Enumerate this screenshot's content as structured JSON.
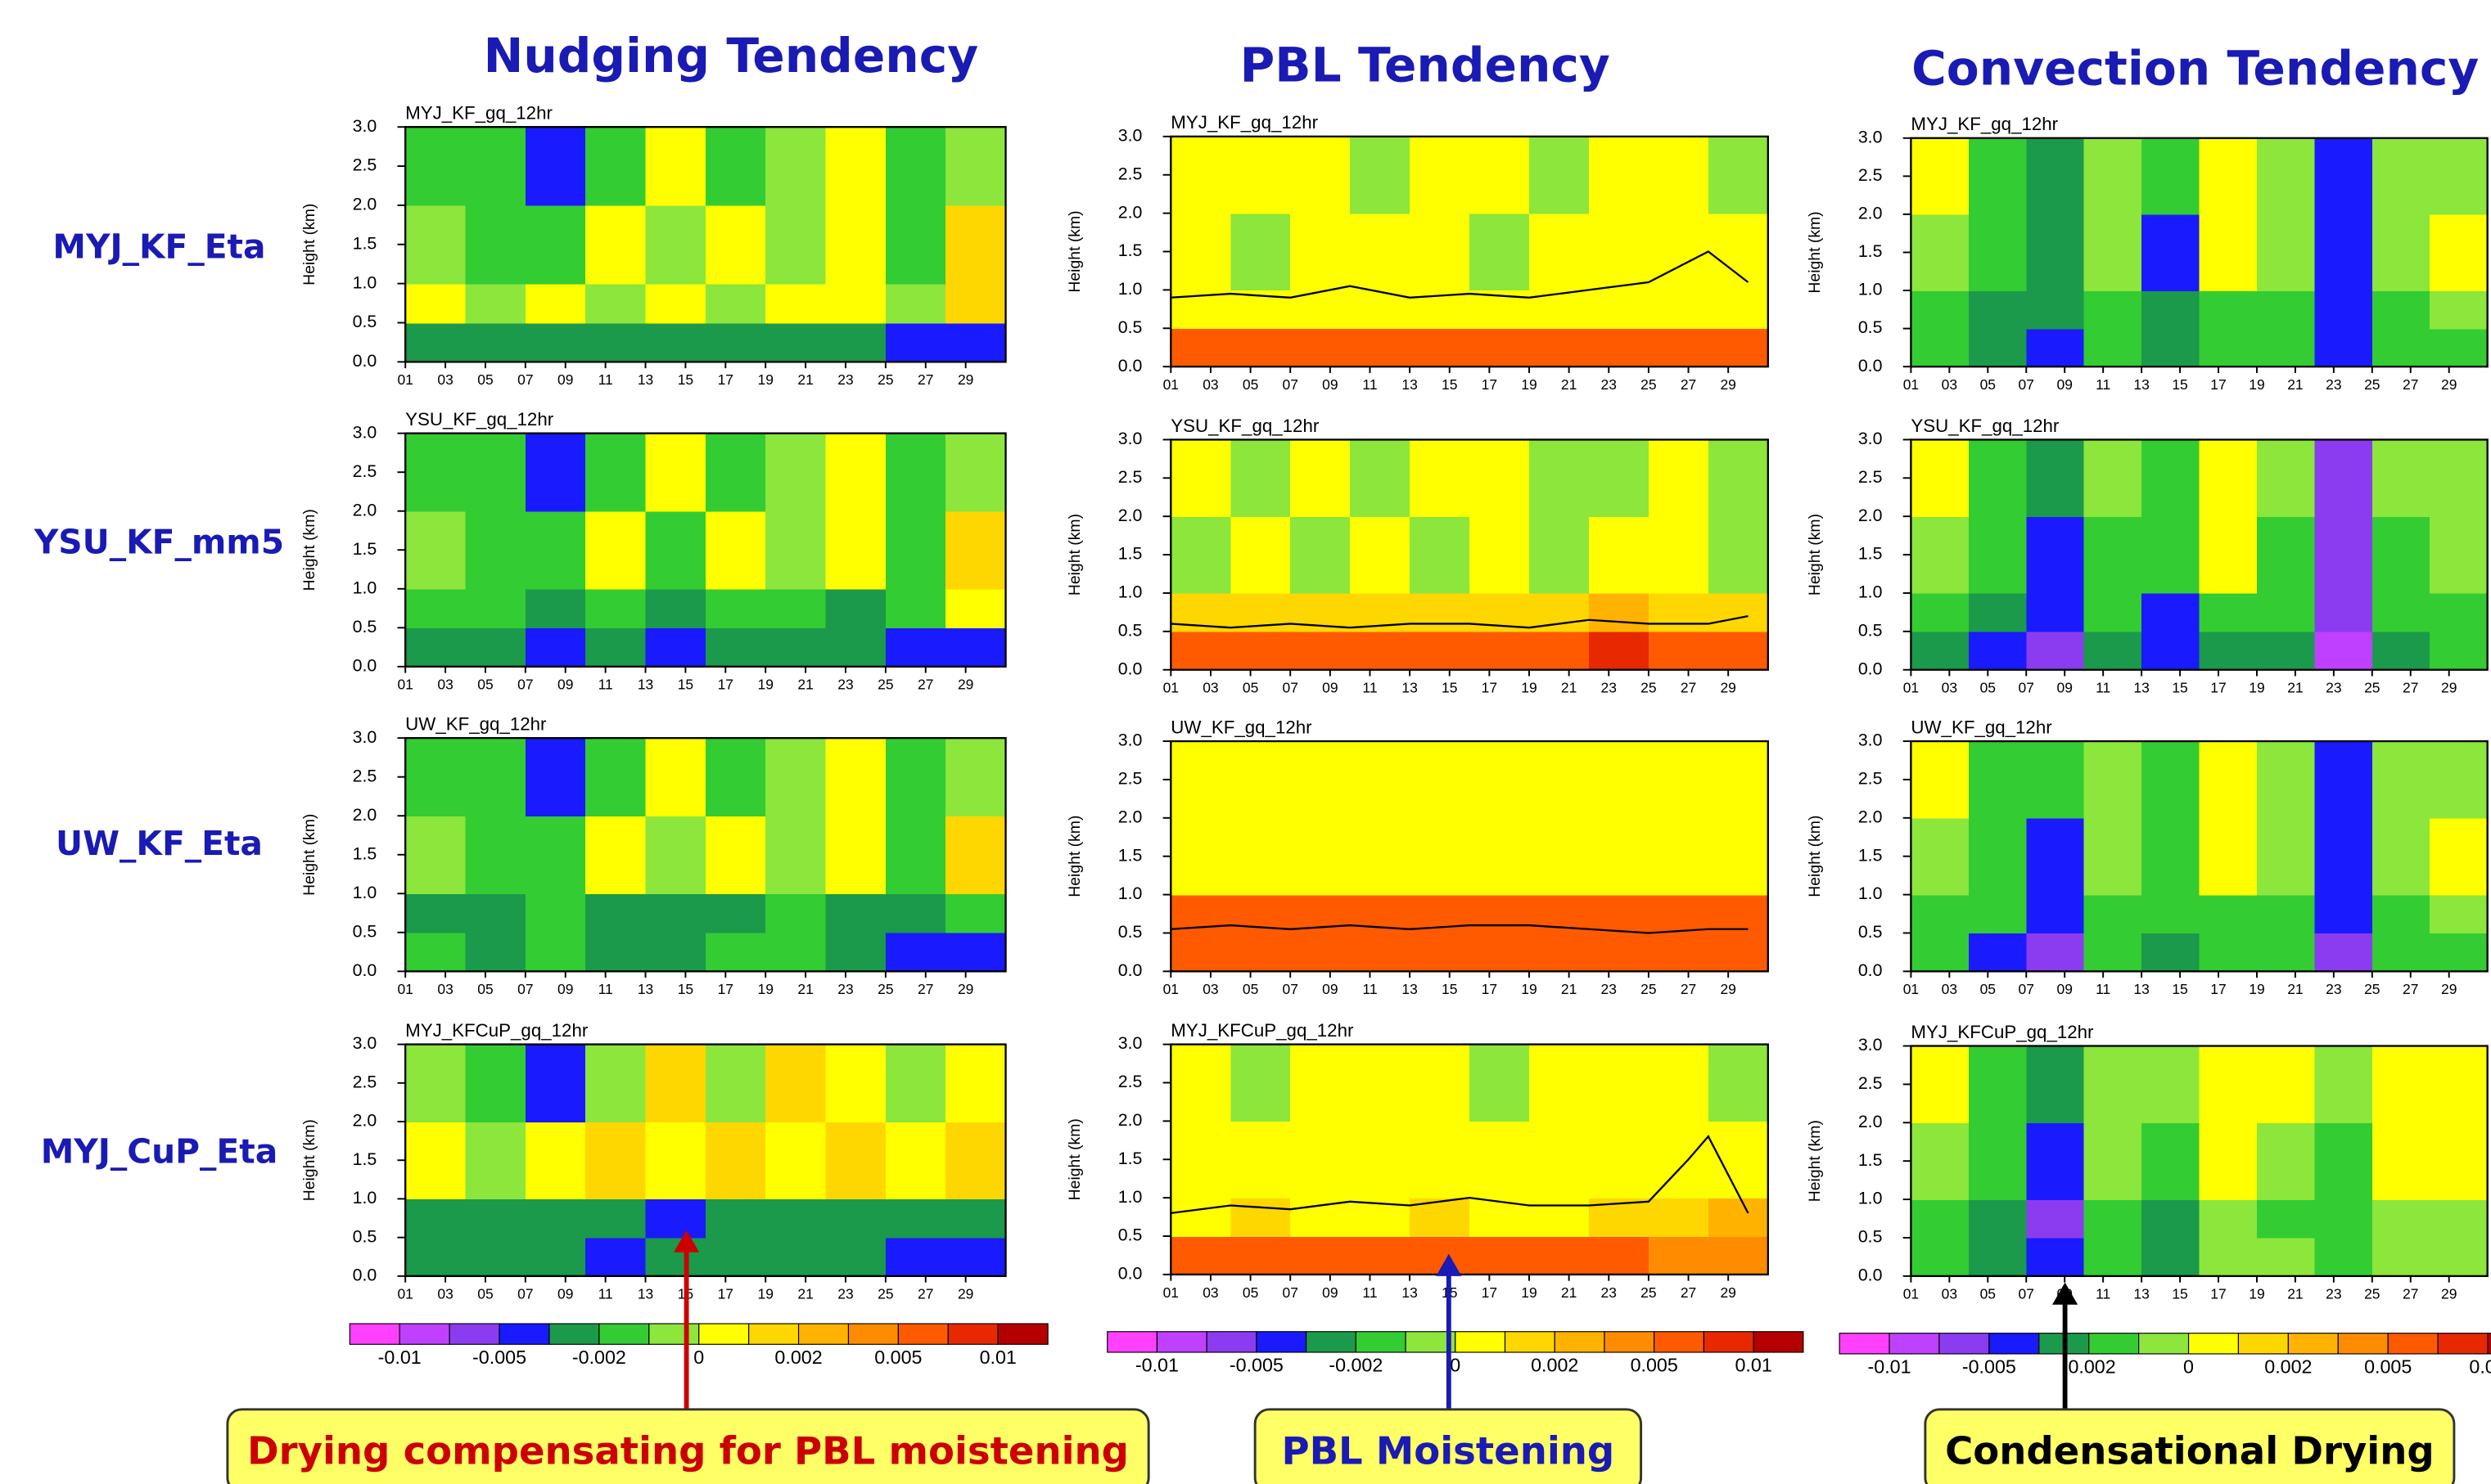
{
  "columns": [
    "Nudging Tendency",
    "PBL Tendency",
    "Convection Tendency"
  ],
  "rows": [
    "MYJ_KF_Eta",
    "YSU_KF_mm5",
    "UW_KF_Eta",
    "MYJ_CuP_Eta"
  ],
  "heading_color": "#1a1ab4",
  "axes": {
    "ylabel": "Height (km)",
    "xlim": [
      1,
      31
    ],
    "ylim": [
      0,
      3
    ],
    "x_edges": [
      1,
      4,
      7,
      10,
      13,
      16,
      19,
      22,
      25,
      28,
      31
    ],
    "y_edges": [
      0,
      0.5,
      1,
      2,
      3
    ],
    "xticks": [
      {
        "value": 1,
        "label": "01"
      },
      {
        "value": 3,
        "label": "03"
      },
      {
        "value": 5,
        "label": "05"
      },
      {
        "value": 7,
        "label": "07"
      },
      {
        "value": 9,
        "label": "09"
      },
      11,
      13,
      15,
      17,
      19,
      21,
      23,
      25,
      27,
      29
    ],
    "yticks": [
      {
        "value": 0,
        "label": "0.0"
      },
      0.5,
      {
        "value": 1,
        "label": "1.0"
      },
      1.5,
      {
        "value": 2,
        "label": "2.0"
      },
      2.5,
      {
        "value": 3,
        "label": "3.0"
      }
    ]
  },
  "colorbar": {
    "colors": [
      "#ff40ff",
      "#c040ff",
      "#8c3cf0",
      "#1a1aff",
      "#1a9a4a",
      "#33cc33",
      "#8ce63c",
      "#ffff00",
      "#ffd700",
      "#ffb300",
      "#ff8c00",
      "#ff5a00",
      "#e82800",
      "#b40000"
    ],
    "ticks": [
      -0.01,
      -0.005,
      -0.002,
      0,
      0.002,
      0.005,
      0.01
    ]
  },
  "chart_data": [
    {
      "type": "heatmap",
      "title": "MYJ_KF_gq_12hr",
      "values": [
        [
          -0.0025,
          -0.0025,
          -0.0025,
          -0.003,
          -0.0025,
          -0.0025,
          -0.0025,
          -0.003,
          -0.004,
          -0.0045
        ],
        [
          0.0005,
          -0.0005,
          0.0005,
          -0.0005,
          0.0005,
          -0.0005,
          0.0005,
          0.0005,
          -0.0005,
          0.0015
        ],
        [
          -0.0005,
          -0.0015,
          -0.0015,
          0.0005,
          -0.0005,
          0.0005,
          -0.0005,
          0.0005,
          -0.0015,
          0.0015
        ],
        [
          -0.0015,
          -0.0015,
          -0.004,
          -0.0015,
          0.0005,
          -0.0015,
          -0.0005,
          0.0005,
          -0.0015,
          -0.0005
        ]
      ]
    },
    {
      "type": "heatmap",
      "title": "MYJ_KF_gq_12hr",
      "values": [
        [
          0.006,
          0.0065,
          0.006,
          0.0055,
          0.006,
          0.006,
          0.0065,
          0.007,
          0.0065,
          0.006
        ],
        [
          0.0005,
          0.0005,
          0.0005,
          0.0005,
          0.0005,
          0.0005,
          0.0005,
          0.0005,
          0.0005,
          0.0005
        ],
        [
          0.0005,
          -0.0005,
          0.0005,
          0.0005,
          0.0005,
          -0.0005,
          0.0005,
          0.0005,
          0.0005,
          0.0005
        ],
        [
          0.0005,
          0.0005,
          0.0005,
          -0.0005,
          0.0005,
          0.0005,
          -0.0005,
          0.0005,
          0.0005,
          -0.0005
        ]
      ],
      "line": {
        "color": "#000000",
        "x": [
          1,
          4,
          7,
          10,
          13,
          16,
          19,
          22,
          25,
          28,
          30
        ],
        "values": [
          0.9,
          0.95,
          0.9,
          1.05,
          0.9,
          0.95,
          0.9,
          1.0,
          1.1,
          1.5,
          1.1
        ]
      }
    },
    {
      "type": "heatmap",
      "title": "MYJ_KF_gq_12hr",
      "values": [
        [
          -0.0015,
          -0.003,
          -0.004,
          -0.0015,
          -0.003,
          -0.0015,
          -0.0015,
          -0.005,
          -0.0015,
          -0.0015
        ],
        [
          -0.0015,
          -0.0025,
          -0.003,
          -0.0015,
          -0.003,
          -0.0015,
          -0.0015,
          -0.005,
          -0.0015,
          -0.0005
        ],
        [
          -0.0005,
          -0.0015,
          -0.0025,
          -0.0005,
          -0.004,
          0.0005,
          -0.0005,
          -0.005,
          -0.0005,
          0.0005
        ],
        [
          0.0005,
          -0.0015,
          -0.0025,
          -0.0005,
          -0.0015,
          0.0005,
          -0.0005,
          -0.005,
          -0.0005,
          -0.0005
        ]
      ]
    },
    {
      "type": "heatmap",
      "title": "YSU_KF_gq_12hr",
      "values": [
        [
          -0.0025,
          -0.003,
          -0.004,
          -0.003,
          -0.004,
          -0.003,
          -0.0025,
          -0.003,
          -0.004,
          -0.0045
        ],
        [
          -0.0015,
          -0.0015,
          -0.003,
          -0.0015,
          -0.0025,
          -0.0015,
          -0.0015,
          -0.0025,
          -0.0015,
          0.0005
        ],
        [
          -0.0005,
          -0.0015,
          -0.0015,
          0.0005,
          -0.0015,
          0.0005,
          -0.0005,
          0.0005,
          -0.0015,
          0.0015
        ],
        [
          -0.0015,
          -0.0015,
          -0.004,
          -0.0015,
          0.0005,
          -0.0015,
          -0.0005,
          0.0005,
          -0.0015,
          -0.0005
        ]
      ]
    },
    {
      "type": "heatmap",
      "title": "YSU_KF_gq_12hr",
      "values": [
        [
          0.0065,
          0.007,
          0.0065,
          0.006,
          0.007,
          0.0065,
          0.0065,
          0.008,
          0.007,
          0.0065
        ],
        [
          0.0015,
          0.0015,
          0.0015,
          0.0015,
          0.0015,
          0.0015,
          0.0015,
          0.0025,
          0.0015,
          0.0015
        ],
        [
          -0.0005,
          0.0005,
          -0.0005,
          0.0005,
          -0.0005,
          0.0005,
          -0.0005,
          0.0005,
          0.0005,
          -0.0005
        ],
        [
          0.0005,
          -0.0005,
          0.0005,
          -0.0005,
          0.0005,
          0.0005,
          -0.0005,
          -0.0005,
          0.0005,
          -0.0005
        ]
      ],
      "line": {
        "color": "#000000",
        "x": [
          1,
          4,
          7,
          10,
          13,
          16,
          19,
          22,
          25,
          28,
          30
        ],
        "values": [
          0.6,
          0.55,
          0.6,
          0.55,
          0.6,
          0.6,
          0.55,
          0.65,
          0.6,
          0.6,
          0.7
        ]
      }
    },
    {
      "type": "heatmap",
      "title": "YSU_KF_gq_12hr",
      "values": [
        [
          -0.003,
          -0.004,
          -0.006,
          -0.003,
          -0.004,
          -0.003,
          -0.003,
          -0.009,
          -0.003,
          -0.002
        ],
        [
          -0.0015,
          -0.003,
          -0.004,
          -0.0015,
          -0.004,
          -0.0015,
          -0.0015,
          -0.006,
          -0.0015,
          -0.0015
        ],
        [
          -0.0005,
          -0.0015,
          -0.004,
          -0.0015,
          -0.0015,
          0.0005,
          -0.0015,
          -0.006,
          -0.0015,
          -0.0005
        ],
        [
          0.0005,
          -0.0015,
          -0.003,
          -0.0005,
          -0.0015,
          0.0005,
          -0.0005,
          -0.006,
          -0.0005,
          -0.0005
        ]
      ]
    },
    {
      "type": "heatmap",
      "title": "UW_KF_gq_12hr",
      "values": [
        [
          -0.0015,
          -0.0025,
          -0.0015,
          -0.0025,
          -0.0025,
          -0.0015,
          -0.0015,
          -0.0025,
          -0.0045,
          -0.0045
        ],
        [
          -0.0025,
          -0.0025,
          -0.0015,
          -0.0025,
          -0.003,
          -0.0025,
          -0.0015,
          -0.0025,
          -0.003,
          -0.0015
        ],
        [
          -0.0005,
          -0.0015,
          -0.0015,
          0.0005,
          -0.0005,
          0.0005,
          -0.0005,
          0.0005,
          -0.0015,
          0.0015
        ],
        [
          -0.0015,
          -0.0015,
          -0.004,
          -0.0015,
          0.0005,
          -0.0015,
          -0.0005,
          0.0005,
          -0.0015,
          -0.0005
        ]
      ]
    },
    {
      "type": "heatmap",
      "title": "UW_KF_gq_12hr",
      "values": [
        [
          0.0055,
          0.006,
          0.006,
          0.0055,
          0.006,
          0.006,
          0.0055,
          0.007,
          0.0065,
          0.006
        ],
        [
          0.005,
          0.0055,
          0.005,
          0.0055,
          0.005,
          0.0055,
          0.005,
          0.006,
          0.0055,
          0.005
        ],
        [
          0.0005,
          0.0005,
          0.0005,
          0.0005,
          0.0005,
          0.0005,
          0.0005,
          0.0005,
          0.0005,
          0.0005
        ],
        [
          0.0005,
          0.0005,
          0.0005,
          0.0005,
          0.0005,
          0.0005,
          0.0005,
          0.0005,
          0.0005,
          0.0005
        ]
      ],
      "line": {
        "color": "#000000",
        "x": [
          1,
          4,
          7,
          10,
          13,
          16,
          19,
          22,
          25,
          28,
          30
        ],
        "values": [
          0.55,
          0.6,
          0.55,
          0.6,
          0.55,
          0.6,
          0.6,
          0.55,
          0.5,
          0.55,
          0.55
        ]
      }
    },
    {
      "type": "heatmap",
      "title": "UW_KF_gq_12hr",
      "values": [
        [
          -0.0015,
          -0.004,
          -0.006,
          -0.0015,
          -0.003,
          -0.0015,
          -0.0015,
          -0.006,
          -0.0015,
          -0.0015
        ],
        [
          -0.0015,
          -0.0015,
          -0.004,
          -0.0015,
          -0.0015,
          -0.0015,
          -0.0015,
          -0.005,
          -0.0015,
          -0.0005
        ],
        [
          -0.0005,
          -0.0015,
          -0.004,
          -0.0005,
          -0.0015,
          0.0005,
          -0.0005,
          -0.005,
          -0.0005,
          0.0005
        ],
        [
          0.0005,
          -0.0015,
          -0.0015,
          -0.0005,
          -0.0015,
          0.0005,
          -0.0005,
          -0.005,
          -0.0005,
          -0.0005
        ]
      ]
    },
    {
      "type": "heatmap",
      "title": "MYJ_KFCuP_gq_12hr",
      "values": [
        [
          -0.003,
          -0.0025,
          -0.003,
          -0.004,
          -0.003,
          -0.003,
          -0.0025,
          -0.0035,
          -0.0045,
          -0.0045
        ],
        [
          -0.0025,
          -0.0025,
          -0.0025,
          -0.0035,
          -0.004,
          -0.0025,
          -0.0025,
          -0.0025,
          -0.0035,
          -0.0025
        ],
        [
          0.0005,
          -0.0005,
          0.0005,
          0.0015,
          0.0005,
          0.0015,
          0.0005,
          0.0015,
          0.0005,
          0.0015
        ],
        [
          -0.0005,
          -0.0015,
          -0.004,
          -0.0005,
          0.0015,
          -0.0005,
          0.0015,
          0.0005,
          -0.0005,
          0.0005
        ]
      ]
    },
    {
      "type": "heatmap",
      "title": "MYJ_KFCuP_gq_12hr",
      "values": [
        [
          0.005,
          0.006,
          0.0055,
          0.005,
          0.0055,
          0.005,
          0.005,
          0.0055,
          0.0035,
          0.0035
        ],
        [
          0.0005,
          0.0015,
          0.0005,
          0.0005,
          0.0015,
          0.0005,
          0.0005,
          0.0015,
          0.0015,
          0.0025
        ],
        [
          0.0005,
          0.0005,
          0.0005,
          0.0005,
          0.0005,
          0.0005,
          0.0005,
          0.0005,
          0.0005,
          0.0005
        ],
        [
          0.0005,
          -0.0005,
          0.0005,
          0.0005,
          0.0005,
          -0.0005,
          0.0005,
          0.0005,
          0.0005,
          -0.0005
        ]
      ],
      "line": {
        "color": "#000000",
        "x": [
          1,
          4,
          7,
          10,
          13,
          16,
          19,
          22,
          25,
          27,
          28,
          30
        ],
        "values": [
          0.8,
          0.9,
          0.85,
          0.95,
          0.9,
          1.0,
          0.9,
          0.9,
          0.95,
          1.5,
          1.8,
          0.8
        ]
      }
    },
    {
      "type": "heatmap",
      "title": "MYJ_KFCuP_gq_12hr",
      "values": [
        [
          -0.0015,
          -0.003,
          -0.005,
          -0.0015,
          -0.003,
          -0.0005,
          -0.0005,
          -0.0015,
          -0.0005,
          -0.0005
        ],
        [
          -0.0015,
          -0.003,
          -0.006,
          -0.0015,
          -0.0025,
          -0.0005,
          -0.0015,
          -0.0015,
          -0.0005,
          -0.0005
        ],
        [
          -0.0005,
          -0.0015,
          -0.004,
          -0.0005,
          -0.0015,
          0.0005,
          -0.0005,
          -0.0015,
          0.0005,
          0.0005
        ],
        [
          0.0005,
          -0.0015,
          -0.003,
          -0.0005,
          -0.0005,
          0.0005,
          0.0005,
          -0.0005,
          0.0005,
          0.0005
        ]
      ]
    }
  ],
  "annotations": [
    {
      "text": "Drying compensating for PBL moistening",
      "color": "#cc0000"
    },
    {
      "text": "PBL Moistening",
      "color": "#1a1ab4"
    },
    {
      "text": "Condensational Drying",
      "color": "#000000"
    }
  ]
}
